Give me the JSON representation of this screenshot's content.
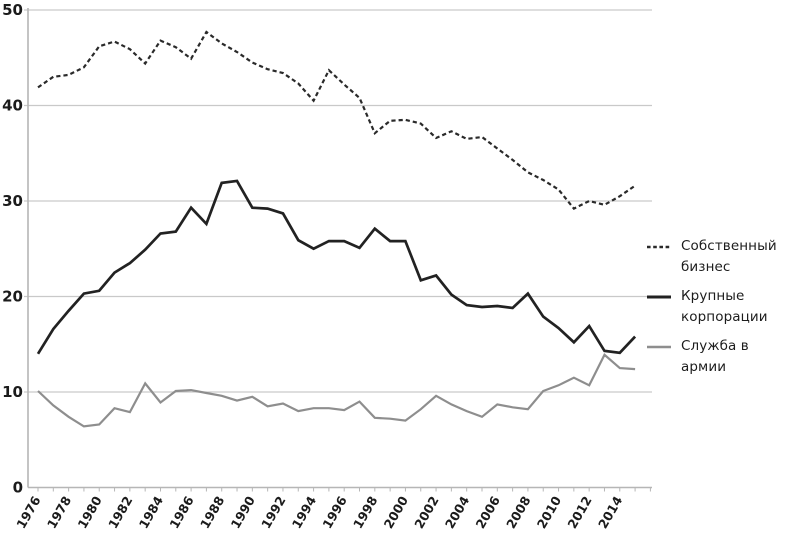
{
  "chart_data": {
    "type": "line",
    "title": "",
    "xlabel": "",
    "ylabel": "",
    "ylim": [
      0,
      50
    ],
    "y_ticks": [
      0,
      10,
      20,
      30,
      40,
      50
    ],
    "grid": "horizontal",
    "legend_position": "right",
    "x": [
      1976,
      1977,
      1978,
      1979,
      1980,
      1981,
      1982,
      1983,
      1984,
      1985,
      1986,
      1987,
      1988,
      1989,
      1990,
      1991,
      1992,
      1993,
      1994,
      1995,
      1996,
      1997,
      1998,
      1999,
      2000,
      2001,
      2002,
      2003,
      2004,
      2005,
      2006,
      2007,
      2008,
      2009,
      2010,
      2011,
      2012,
      2013,
      2014,
      2015
    ],
    "x_tick_labels": [
      "1976",
      "1978",
      "1980",
      "1982",
      "1984",
      "1986",
      "1988",
      "1990",
      "1992",
      "1994",
      "1996",
      "1998",
      "2000",
      "2002",
      "2004",
      "2006",
      "2008",
      "2010",
      "2012",
      "2014"
    ],
    "x_minor_tick_last_year": 2016,
    "series": [
      {
        "name": "Собственный бизнес",
        "style": "dashed",
        "color": "#2a2a2a",
        "values": [
          41.9,
          43.0,
          43.2,
          44.0,
          46.2,
          46.7,
          45.9,
          44.4,
          46.8,
          46.1,
          44.9,
          47.7,
          46.5,
          45.6,
          44.5,
          43.8,
          43.4,
          42.3,
          40.5,
          43.7,
          42.2,
          40.8,
          37.1,
          38.4,
          38.5,
          38.1,
          36.6,
          37.3,
          36.5,
          36.7,
          35.5,
          34.3,
          33.0,
          32.2,
          31.2,
          29.2,
          30.0,
          29.6,
          30.5,
          31.6
        ]
      },
      {
        "name": "Крупные корпорации",
        "style": "solid",
        "color": "#222222",
        "values": [
          14.0,
          16.6,
          18.5,
          20.3,
          20.6,
          22.5,
          23.5,
          24.9,
          26.6,
          26.8,
          29.3,
          27.6,
          31.9,
          32.1,
          29.3,
          29.2,
          28.7,
          25.9,
          25.0,
          25.8,
          25.8,
          25.1,
          27.1,
          25.8,
          25.8,
          21.7,
          22.2,
          20.2,
          19.1,
          18.9,
          19.0,
          18.8,
          20.3,
          17.9,
          16.7,
          15.2,
          16.9,
          14.3,
          14.1,
          15.8
        ]
      },
      {
        "name": "Служба в армии",
        "style": "solid",
        "color": "#8e8e8e",
        "values": [
          10.1,
          8.6,
          7.4,
          6.4,
          6.6,
          8.3,
          7.9,
          10.9,
          8.9,
          10.1,
          10.2,
          9.9,
          9.6,
          9.1,
          9.5,
          8.5,
          8.8,
          8.0,
          8.3,
          8.3,
          8.1,
          9.0,
          7.3,
          7.2,
          7.0,
          8.2,
          9.6,
          8.7,
          8.0,
          7.4,
          8.7,
          8.4,
          8.2,
          10.1,
          10.7,
          11.5,
          10.7,
          13.9,
          12.5,
          12.4
        ]
      }
    ],
    "axis_colors": {
      "grid": "#c9c9c9",
      "axis": "#b6b6b6",
      "tick_label": "#1b1b1b"
    }
  }
}
